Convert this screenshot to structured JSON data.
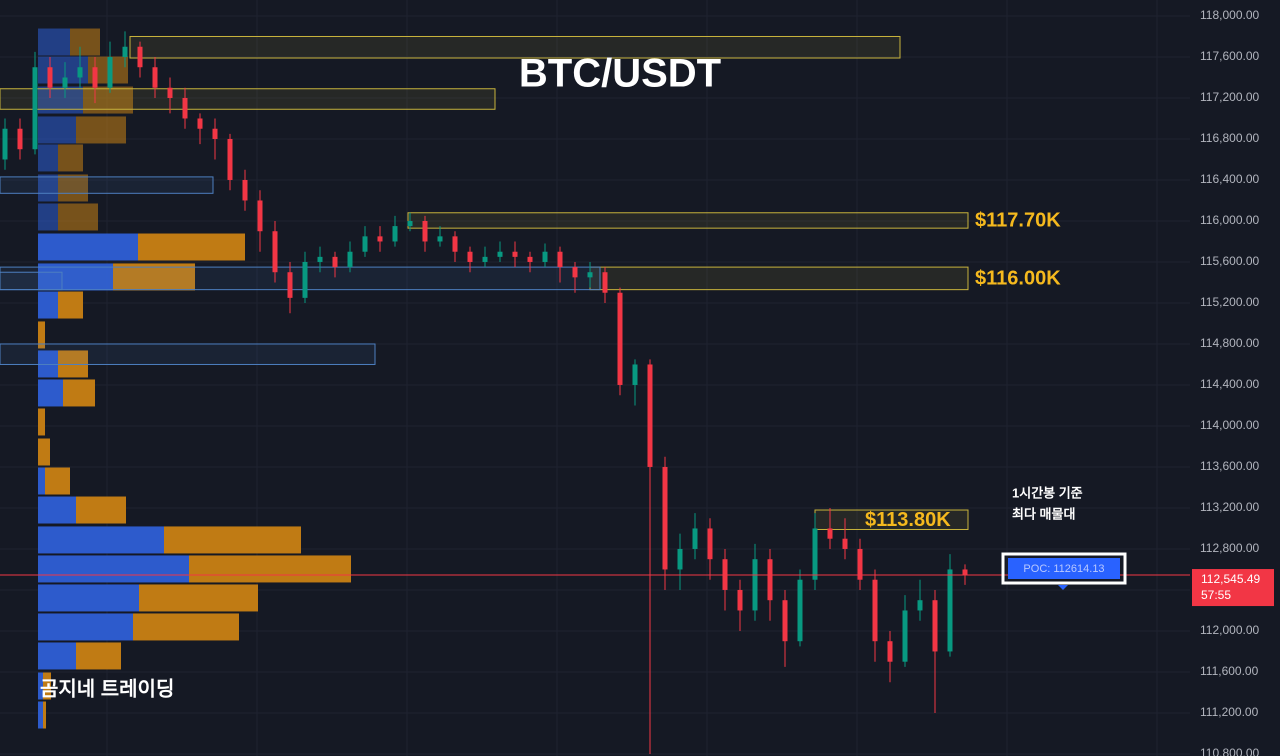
{
  "chart_data": {
    "type": "candlestick",
    "title": "BTC/USDT",
    "watermark": "곰지네 트레이딩",
    "annotation": [
      "1시간봉 기준",
      "최다 매물대"
    ],
    "poc": {
      "value": 112614.13,
      "label": "POC: 112614.13"
    },
    "last_price": {
      "value": 112545.49,
      "label": "112,545.49"
    },
    "countdown": "57:55",
    "ylim": [
      110780,
      118156
    ],
    "yticks": [
      {
        "value": 118000,
        "label": "118,000.00"
      },
      {
        "value": 117600,
        "label": "117,600.00"
      },
      {
        "value": 117200,
        "label": "117,200.00"
      },
      {
        "value": 116800,
        "label": "116,800.00"
      },
      {
        "value": 116400,
        "label": "116,400.00"
      },
      {
        "value": 116000,
        "label": "116,000.00"
      },
      {
        "value": 115600,
        "label": "115,600.00"
      },
      {
        "value": 115200,
        "label": "115,200.00"
      },
      {
        "value": 114800,
        "label": "114,800.00"
      },
      {
        "value": 114400,
        "label": "114,400.00"
      },
      {
        "value": 114000,
        "label": "114,000.00"
      },
      {
        "value": 113600,
        "label": "113,600.00"
      },
      {
        "value": 113200,
        "label": "113,200.00"
      },
      {
        "value": 112800,
        "label": "112,800.00"
      },
      {
        "value": 112400,
        "label": "112,400.00"
      },
      {
        "value": 112000,
        "label": "112,000.00"
      },
      {
        "value": 111600,
        "label": "111,600.00"
      },
      {
        "value": 111200,
        "label": "111,200.00"
      },
      {
        "value": 110800,
        "label": "110,800.00"
      }
    ],
    "grid": true,
    "up_color": "#089981",
    "down_color": "#f23645",
    "open": [
      116600,
      116900,
      116700,
      117500,
      117300,
      117400,
      117500,
      117300,
      117600,
      117700,
      117500,
      117300,
      117200,
      117000,
      116900,
      116800,
      116400,
      116200,
      115900,
      115500,
      115250,
      115600,
      115650,
      115550,
      115700,
      115850,
      115800,
      115950,
      116000,
      115800,
      115850,
      115700,
      115600,
      115650,
      115700,
      115650,
      115600,
      115700,
      115550,
      115450,
      115500,
      115300,
      114400,
      114600,
      113600,
      112600,
      112800,
      113000,
      112700,
      112400,
      112200,
      112700,
      112300,
      111900,
      112500,
      113000,
      112900,
      112800,
      112500,
      111900,
      111700,
      112200,
      112300,
      111800,
      112600
    ],
    "high": [
      117000,
      117000,
      117650,
      117600,
      117550,
      117700,
      117600,
      117750,
      117850,
      117750,
      117600,
      117400,
      117300,
      117050,
      117000,
      116850,
      116500,
      116300,
      116000,
      115600,
      115700,
      115750,
      115700,
      115800,
      115950,
      115950,
      116050,
      116080,
      116050,
      115950,
      115900,
      115750,
      115750,
      115800,
      115800,
      115700,
      115780,
      115750,
      115600,
      115600,
      115550,
      115350,
      114650,
      114650,
      113700,
      112950,
      113150,
      113100,
      112800,
      112500,
      112850,
      112800,
      112400,
      112600,
      113150,
      113200,
      113100,
      112900,
      112600,
      112000,
      112350,
      112500,
      112400,
      112750,
      112650
    ],
    "low": [
      116500,
      116600,
      116650,
      117200,
      117200,
      117300,
      117150,
      117250,
      117500,
      117400,
      117200,
      117050,
      116900,
      116750,
      116600,
      116300,
      116100,
      115700,
      115400,
      115100,
      115200,
      115500,
      115450,
      115500,
      115650,
      115700,
      115750,
      115900,
      115700,
      115750,
      115600,
      115500,
      115550,
      115600,
      115550,
      115500,
      115550,
      115400,
      115300,
      115350,
      115200,
      114300,
      114200,
      110800,
      112400,
      112400,
      112700,
      112500,
      112200,
      112000,
      112100,
      112100,
      111650,
      111850,
      112400,
      112800,
      112700,
      112400,
      111700,
      111500,
      111650,
      112100,
      111200,
      111750,
      112450
    ],
    "close": [
      116900,
      116700,
      117500,
      117300,
      117400,
      117500,
      117300,
      117600,
      117700,
      117500,
      117300,
      117200,
      117000,
      116900,
      116800,
      116400,
      116200,
      115900,
      115500,
      115250,
      115600,
      115650,
      115550,
      115700,
      115850,
      115800,
      115950,
      116000,
      115800,
      115850,
      115700,
      115600,
      115650,
      115700,
      115650,
      115600,
      115700,
      115550,
      115450,
      115500,
      115300,
      114400,
      114600,
      113600,
      112600,
      112800,
      113000,
      112700,
      112400,
      112200,
      112700,
      112300,
      111900,
      112500,
      113000,
      112900,
      112800,
      112500,
      111900,
      111700,
      112200,
      112300,
      111800,
      112600,
      112545
    ],
    "volume_profile": {
      "price_levels": [
        117746,
        117473,
        117180,
        116888,
        116615,
        116322,
        116039,
        115746,
        115454,
        115180,
        114888,
        114605,
        114322,
        114039,
        113746,
        113463,
        113180,
        112888,
        112605,
        112322,
        112039,
        111756,
        111463,
        111180
      ],
      "series": [
        {
          "color": "#2e5fd6",
          "values": [
            32,
            50,
            45,
            38,
            20,
            20,
            20,
            100,
            75,
            20,
            0,
            20,
            25,
            0,
            0,
            7,
            38,
            126,
            151,
            101,
            95,
            38,
            5,
            5
          ]
        },
        {
          "color": "#c98114",
          "values": [
            30,
            40,
            50,
            50,
            25,
            30,
            40,
            107,
            82,
            25,
            7,
            30,
            32,
            7,
            12,
            25,
            50,
            137,
            162,
            119,
            106,
            45,
            8,
            3
          ]
        }
      ]
    },
    "zones": [
      {
        "top": 117800,
        "bottom": 117590,
        "color": "#c8b43c"
      },
      {
        "top": 117290,
        "bottom": 117090,
        "color": "#c8b43c"
      },
      {
        "top": 116430,
        "bottom": 116270,
        "color": "#4d7fc0"
      },
      {
        "top": 116080,
        "bottom": 115930,
        "color": "#c8b43c",
        "label": "$117.70K"
      },
      {
        "top": 115550,
        "bottom": 115330,
        "color": "#c8b43c",
        "label": "$116.00K"
      },
      {
        "top": 115550,
        "bottom": 115330,
        "color": "#4d7fc0"
      },
      {
        "top": 115500,
        "bottom": 115330,
        "color": "#4d7fc0"
      },
      {
        "top": 114800,
        "bottom": 114600,
        "color": "#4d7fc0"
      },
      {
        "top": 113180,
        "bottom": 112990,
        "color": "#c8b43c",
        "label": "$113.80K"
      }
    ]
  }
}
